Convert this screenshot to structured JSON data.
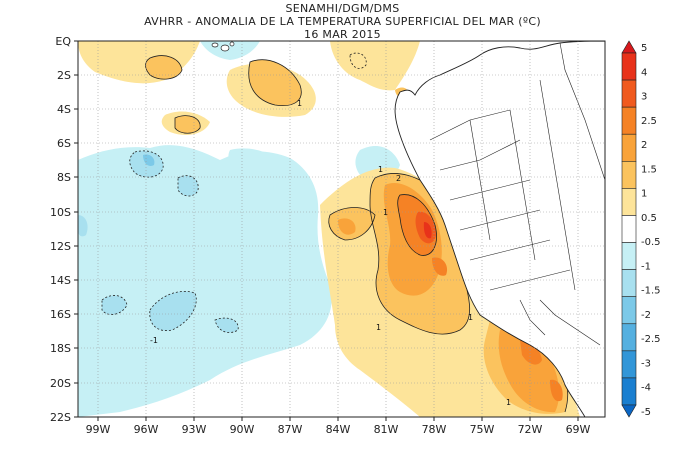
{
  "header": {
    "line1": "SENAMHI/DGM/DMS",
    "line2": "AVHRR - ANOMALIA DE LA TEMPERATURA SUPERFICIAL DEL MAR (ºC)",
    "line3": "16 MAR 2015"
  },
  "axes": {
    "lat_labels": [
      "EQ",
      "2S",
      "4S",
      "6S",
      "8S",
      "10S",
      "12S",
      "14S",
      "16S",
      "18S",
      "20S",
      "22S"
    ],
    "lon_labels": [
      "99W",
      "96W",
      "93W",
      "90W",
      "87W",
      "84W",
      "81W",
      "78W",
      "75W",
      "72W",
      "69W"
    ]
  },
  "colorbar": {
    "labels": [
      "5",
      "4",
      "3",
      "2.5",
      "2",
      "1.5",
      "1",
      "0.5",
      "-0.5",
      "-1",
      "-1.5",
      "-2",
      "-2.5",
      "-3",
      "-4",
      "-5"
    ],
    "colors": [
      "#d7191c",
      "#e8321a",
      "#f05a1e",
      "#f58225",
      "#f9a33a",
      "#fbc35e",
      "#fde49a",
      "#ffffff",
      "#c6f0f5",
      "#a8e0ef",
      "#7cc9e8",
      "#55b0e0",
      "#3296d8",
      "#1a7fd0",
      "#0a66c4"
    ]
  },
  "contour_labels": {
    "c1": "1",
    "c2": "1",
    "c3": "1",
    "c4": "2",
    "c5": "1",
    "c6": "-1",
    "c7": "1",
    "c8": "1"
  }
}
